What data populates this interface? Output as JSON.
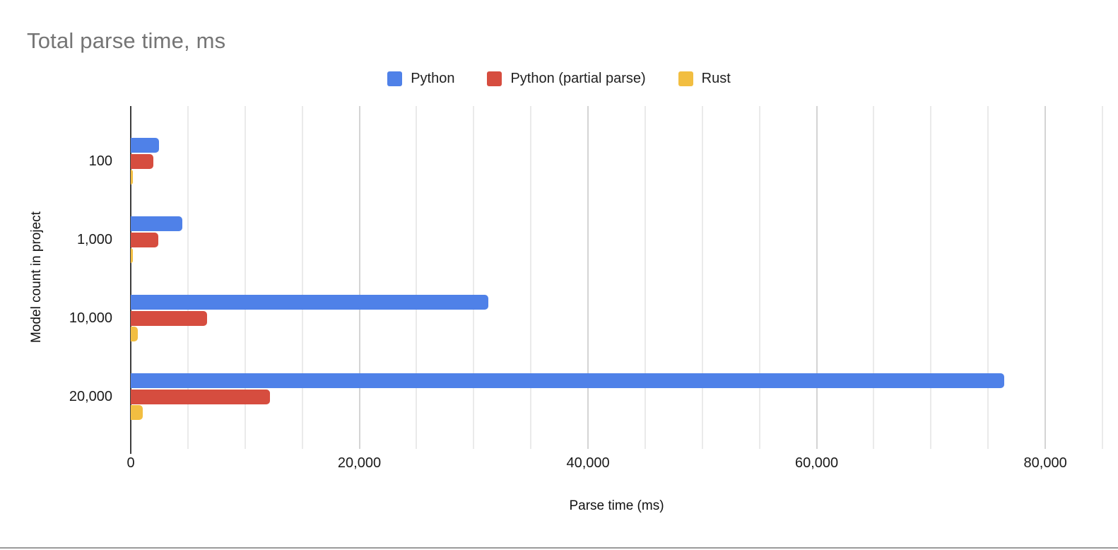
{
  "chart_data": {
    "type": "bar",
    "orientation": "horizontal",
    "title": "Total parse time, ms",
    "xlabel": "Parse time (ms)",
    "ylabel": "Model count in project",
    "categories": [
      "100",
      "1,000",
      "10,000",
      "20,000"
    ],
    "series": [
      {
        "name": "Python",
        "color": "#4f81e8",
        "values": [
          2500,
          4500,
          31300,
          76400
        ]
      },
      {
        "name": "Python (partial parse)",
        "color": "#d64d3f",
        "values": [
          2000,
          2400,
          6700,
          12200
        ]
      },
      {
        "name": "Rust",
        "color": "#f2be41",
        "values": [
          150,
          200,
          600,
          1050
        ]
      }
    ],
    "xlim": [
      0,
      85000
    ],
    "x_ticks": [
      {
        "value": 0,
        "label": "0"
      },
      {
        "value": 20000,
        "label": "20,000"
      },
      {
        "value": 40000,
        "label": "40,000"
      },
      {
        "value": 60000,
        "label": "60,000"
      },
      {
        "value": 80000,
        "label": "80,000"
      }
    ],
    "gridline_step": 5000,
    "major_gridline_step": 20000,
    "grid": true,
    "legend_position": "top",
    "title_color": "#757575",
    "axis_line_color": "#3d3d3d"
  }
}
